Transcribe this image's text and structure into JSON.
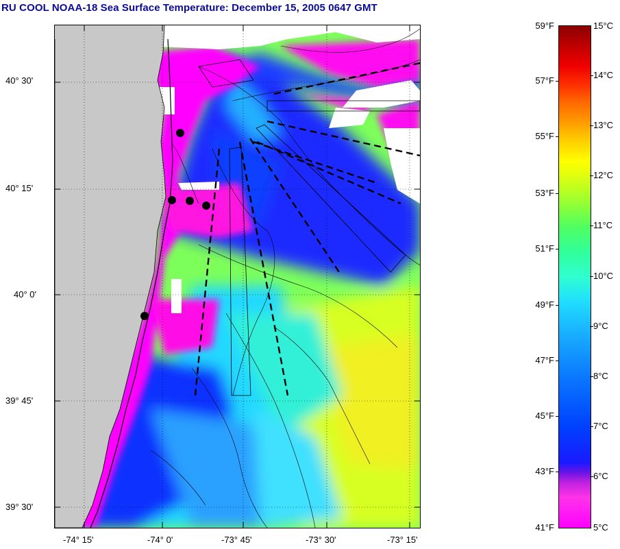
{
  "title": "RU COOL  NOAA-18  Sea Surface Temperature:  December 15, 2005 0647 GMT",
  "lat_labels": [
    "40° 30'",
    "40° 15'",
    "40° 0'",
    "39° 45'",
    "39° 30'"
  ],
  "lon_labels": [
    "-74° 15'",
    "-74° 0'",
    "-73° 45'",
    "-73° 30'",
    "-73° 15'"
  ],
  "colorbar": {
    "fahrenheit": [
      "59°F",
      "57°F",
      "55°F",
      "53°F",
      "51°F",
      "49°F",
      "47°F",
      "45°F",
      "43°F",
      "41°F"
    ],
    "celsius": [
      "15°C",
      "14°C",
      "13°C",
      "12°C",
      "11°C",
      "10°C",
      "9°C",
      "8°C",
      "7°C",
      "6°C",
      "5°C"
    ]
  },
  "colors": {
    "land": "#c8c8c8",
    "title": "#0a0a96",
    "cold": "#ff00ff",
    "mid": "#1e2cff",
    "warm": "#ffff00"
  }
}
